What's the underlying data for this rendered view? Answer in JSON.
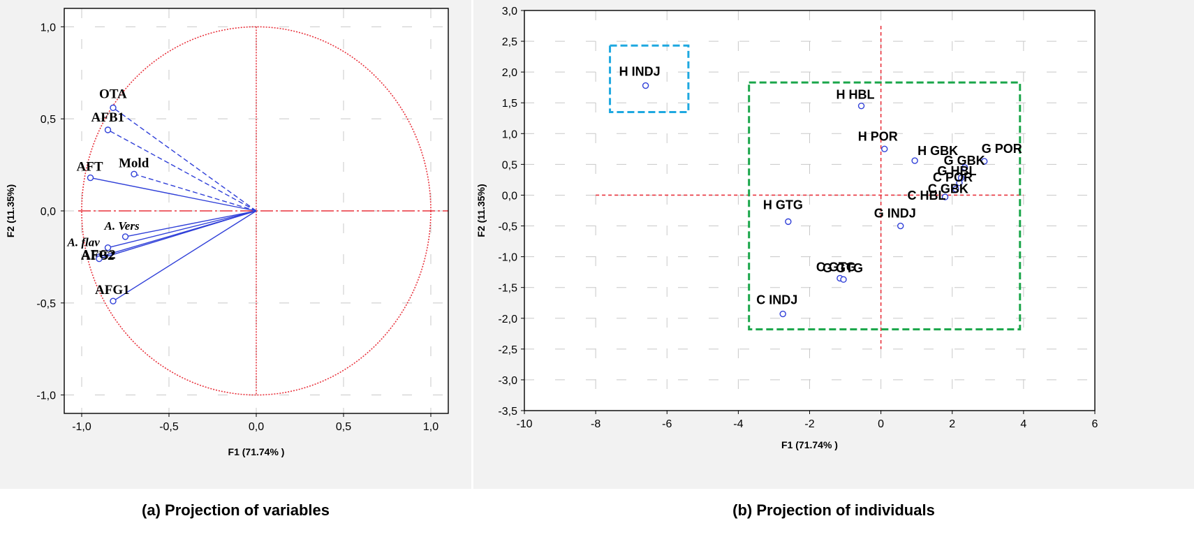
{
  "captions": {
    "a": "(a) Projection of variables",
    "b": "(b) Projection of individuals"
  },
  "colors": {
    "panel_bg": "#f2f2f2",
    "plot_bg": "#ffffff",
    "guide_red": "#e8323c",
    "vector_blue": "#2f3fd8",
    "grid": "#c8c8c8",
    "green_box": "#1aa64a",
    "cyan_box": "#1ea8e0"
  },
  "chart_data": [
    {
      "type": "scatter",
      "subtype": "pca-correlation-circle",
      "title": "",
      "xlabel": "F1 (71.74% )",
      "ylabel": "F2 (11.35%)",
      "xlim": [
        -1.1,
        1.1
      ],
      "ylim": [
        -1.1,
        1.1
      ],
      "xticks": [
        "-1,0",
        "-0,5",
        "0,0",
        "0,5",
        "1,0"
      ],
      "yticks": [
        "1,0",
        "0,5",
        "0,0",
        "-0,5",
        "-1,0"
      ],
      "grid": true,
      "unit_circle": true,
      "variables": [
        {
          "label": "OTA",
          "x": -0.82,
          "y": 0.56,
          "style": "dashed",
          "italic": false
        },
        {
          "label": "AFB1",
          "x": -0.85,
          "y": 0.44,
          "style": "dashed",
          "italic": false
        },
        {
          "label": "Mold",
          "x": -0.7,
          "y": 0.2,
          "style": "dashed",
          "italic": false
        },
        {
          "label": "AFT",
          "x": -0.95,
          "y": 0.18,
          "style": "solid",
          "italic": false
        },
        {
          "label": "A. Vers",
          "x": -0.75,
          "y": -0.14,
          "style": "solid",
          "italic": true
        },
        {
          "label": "A. flav",
          "x": -0.85,
          "y": -0.2,
          "style": "solid",
          "italic": true
        },
        {
          "label": "AFB2",
          "x": -0.9,
          "y": -0.25,
          "style": "solid",
          "italic": false
        },
        {
          "label": "AFG2",
          "x": -0.9,
          "y": -0.26,
          "style": "solid",
          "italic": false
        },
        {
          "label": "AFG1",
          "x": -0.82,
          "y": -0.49,
          "style": "solid",
          "italic": false
        }
      ]
    },
    {
      "type": "scatter",
      "subtype": "pca-individuals",
      "title": "",
      "xlabel": "F1 (71.74% )",
      "ylabel": "F2 (11.35%)",
      "xlim": [
        -10,
        6
      ],
      "ylim": [
        -3.5,
        3.0
      ],
      "xticks": [
        "-10",
        "-8",
        "-6",
        "-4",
        "-2",
        "0",
        "2",
        "4",
        "6"
      ],
      "yticks": [
        "3,0",
        "2,5",
        "2,0",
        "1,5",
        "1,0",
        "0,5",
        "0,0",
        "-0,5",
        "-1,0",
        "-1,5",
        "-2,0",
        "-2,5",
        "-3,0",
        "-3,5"
      ],
      "grid": true,
      "points": [
        {
          "label": "H INDJ",
          "x": -6.6,
          "y": 1.78
        },
        {
          "label": "H HBL",
          "x": -0.55,
          "y": 1.45
        },
        {
          "label": "H POR",
          "x": 0.1,
          "y": 0.75
        },
        {
          "label": "H GBK",
          "x": 0.95,
          "y": 0.56
        },
        {
          "label": "G POR",
          "x": 2.9,
          "y": 0.55
        },
        {
          "label": "G GBK",
          "x": 2.35,
          "y": 0.45
        },
        {
          "label": "G HBL",
          "x": 2.25,
          "y": 0.28
        },
        {
          "label": "C POR",
          "x": 2.2,
          "y": 0.2
        },
        {
          "label": "C GBK",
          "x": 2.1,
          "y": 0.1
        },
        {
          "label": "C HBL",
          "x": 1.8,
          "y": -0.03
        },
        {
          "label": "G INDJ",
          "x": 0.55,
          "y": -0.5
        },
        {
          "label": "H GTG",
          "x": -2.6,
          "y": -0.43
        },
        {
          "label": "C GTG",
          "x": -1.15,
          "y": -1.35
        },
        {
          "label": "G GTG",
          "x": -1.05,
          "y": -1.37
        },
        {
          "label": "C INDJ",
          "x": -2.75,
          "y": -1.93
        }
      ],
      "groups": [
        {
          "name": "",
          "color": "cyan",
          "x_range": [
            -7.6,
            -5.4
          ],
          "y_range": [
            1.35,
            2.43
          ]
        },
        {
          "name": "",
          "color": "green",
          "x_range": [
            -3.7,
            3.9
          ],
          "y_range": [
            -2.18,
            1.83
          ]
        }
      ]
    }
  ]
}
